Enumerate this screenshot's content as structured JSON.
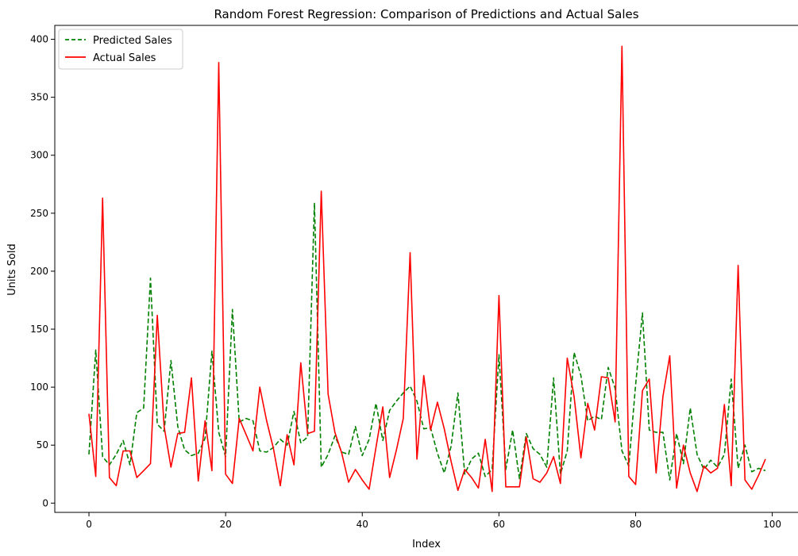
{
  "chart_data": {
    "type": "line",
    "title": "Random Forest Regression: Comparison of Predictions and Actual Sales",
    "xlabel": "Index",
    "ylabel": "Units Sold",
    "xlim": [
      -5,
      104
    ],
    "ylim": [
      -8,
      412
    ],
    "xticks": [
      0,
      20,
      40,
      60,
      80,
      100
    ],
    "yticks": [
      0,
      50,
      100,
      150,
      200,
      250,
      300,
      350,
      400
    ],
    "grid": false,
    "legend_position": "top-left",
    "series": [
      {
        "name": "Predicted Sales",
        "color": "#008000",
        "dash": "dashed",
        "values": [
          42,
          132,
          40,
          33,
          42,
          54,
          33,
          78,
          82,
          194,
          68,
          62,
          123,
          66,
          46,
          41,
          43,
          56,
          131,
          61,
          40,
          167,
          70,
          73,
          71,
          45,
          44,
          48,
          55,
          50,
          79,
          52,
          57,
          259,
          31,
          42,
          58,
          44,
          42,
          66,
          41,
          55,
          86,
          54,
          80,
          88,
          95,
          101,
          88,
          64,
          65,
          43,
          26,
          49,
          95,
          25,
          38,
          43,
          23,
          29,
          128,
          29,
          63,
          21,
          60,
          47,
          42,
          31,
          108,
          25,
          45,
          130,
          110,
          71,
          75,
          72,
          117,
          99,
          45,
          32,
          102,
          164,
          63,
          61,
          61,
          20,
          60,
          34,
          82,
          42,
          29,
          37,
          31,
          42,
          107,
          30,
          50,
          27,
          30,
          28
        ]
      },
      {
        "name": "Actual Sales",
        "color": "#ff0000",
        "dash": "solid",
        "values": [
          77,
          23,
          263,
          22,
          15,
          45,
          45,
          22,
          28,
          34,
          162,
          66,
          31,
          60,
          61,
          108,
          19,
          71,
          28,
          380,
          25,
          17,
          73,
          59,
          45,
          100,
          71,
          47,
          15,
          59,
          33,
          121,
          60,
          62,
          269,
          94,
          61,
          43,
          18,
          29,
          20,
          12,
          48,
          83,
          22,
          46,
          73,
          216,
          38,
          110,
          63,
          87,
          64,
          36,
          11,
          29,
          22,
          13,
          55,
          10,
          179,
          14,
          14,
          14,
          57,
          21,
          18,
          26,
          40,
          17,
          125,
          92,
          39,
          86,
          63,
          109,
          108,
          70,
          394,
          23,
          16,
          97,
          107,
          26,
          92,
          127,
          13,
          50,
          26,
          10,
          32,
          26,
          30,
          85,
          15,
          205,
          20,
          12,
          24,
          38
        ]
      }
    ]
  }
}
